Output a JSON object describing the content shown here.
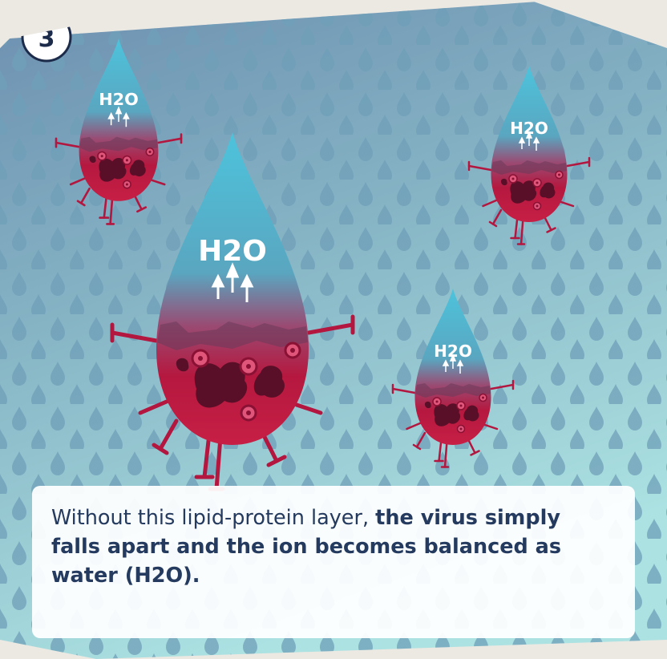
{
  "step_number": "3",
  "drops": [
    {
      "label": "H2O"
    },
    {
      "label": "H2O"
    },
    {
      "label": "H2O"
    },
    {
      "label": "H2O"
    }
  ],
  "caption": {
    "normal_text": "Without this lipid-protein layer, ",
    "bold_text": "the virus simply falls apart and the ion becomes balanced as water (H2O)."
  },
  "colors": {
    "background_top": "#5e8aa8",
    "background_bottom": "#a9dfe0",
    "droplet_pattern": "#6aa0b8",
    "drop_top": "#55c4dc",
    "drop_bottom": "#b3163e",
    "virus_dark": "#5a0f28",
    "caption_text": "#243a5e"
  }
}
